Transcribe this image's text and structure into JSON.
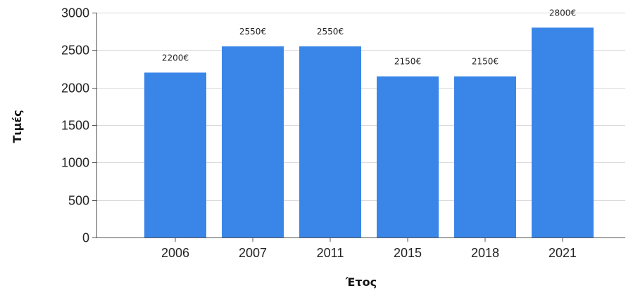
{
  "chart_data": {
    "type": "bar",
    "categories": [
      "2006",
      "2007",
      "2011",
      "2015",
      "2018",
      "2021"
    ],
    "values": [
      2200,
      2550,
      2550,
      2150,
      2150,
      2800
    ],
    "data_labels": [
      "2200€",
      "2550€",
      "2550€",
      "2150€",
      "2150€",
      "2800€"
    ],
    "xlabel": "Έτος",
    "ylabel": "Τιμές",
    "ylim": [
      0,
      3000
    ],
    "yticks": [
      0,
      500,
      1000,
      1500,
      2000,
      2500,
      3000
    ],
    "grid": true,
    "legend": "none",
    "colors": {
      "bar": "#3a86e8",
      "grid": "#d9d9d9",
      "axis": "#555555"
    }
  }
}
